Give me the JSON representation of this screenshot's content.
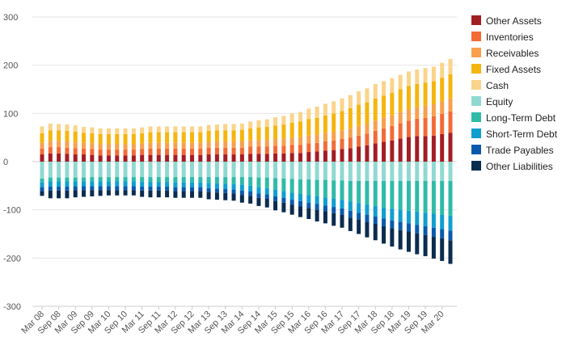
{
  "chart_data": {
    "type": "bar",
    "stacked": true,
    "ylim": [
      -300,
      300
    ],
    "yticks": [
      300,
      200,
      100,
      0,
      -100,
      -200,
      -300
    ],
    "grid": true,
    "legend_position": "right",
    "periods": [
      "Mar 08",
      "Jun 08",
      "Sep 08",
      "Dec 08",
      "Mar 09",
      "Jun 09",
      "Sep 09",
      "Dec 09",
      "Mar 10",
      "Jun 10",
      "Sep 10",
      "Dec 10",
      "Mar 11",
      "Jun 11",
      "Sep 11",
      "Dec 11",
      "Mar 12",
      "Jun 12",
      "Sep 12",
      "Dec 12",
      "Mar 13",
      "Jun 13",
      "Sep 13",
      "Dec 13",
      "Mar 14",
      "Jun 14",
      "Sep 14",
      "Dec 14",
      "Mar 15",
      "Jun 15",
      "Sep 15",
      "Dec 15",
      "Mar 16",
      "Jun 16",
      "Sep 16",
      "Dec 16",
      "Mar 17",
      "Jun 17",
      "Sep 17",
      "Dec 17",
      "Mar 18",
      "Jun 18",
      "Sep 18",
      "Dec 18",
      "Mar 19",
      "Jun 19",
      "Sep 19",
      "Dec 19",
      "Mar 20",
      "Jun 20"
    ],
    "x_tick_labels": [
      "Mar 08",
      "Sep 08",
      "Mar 09",
      "Sep 09",
      "Mar 10",
      "Sep 10",
      "Mar 11",
      "Sep 11",
      "Mar 12",
      "Sep 12",
      "Mar 13",
      "Sep 13",
      "Mar 14",
      "Sep 14",
      "Mar 15",
      "Sep 15",
      "Mar 16",
      "Sep 16",
      "Mar 17",
      "Sep 17",
      "Mar 18",
      "Sep 18",
      "Mar 19",
      "Sep 19",
      "Mar 20"
    ],
    "series": [
      {
        "name": "Other Assets",
        "color": "#a31d24",
        "values": [
          15,
          17,
          17,
          16,
          15,
          15,
          14,
          13,
          13,
          13,
          13,
          13,
          14,
          14,
          14,
          14,
          14,
          14,
          14,
          14,
          15,
          15,
          15,
          15,
          15,
          16,
          16,
          16,
          17,
          17,
          18,
          18,
          20,
          21,
          23,
          24,
          26,
          28,
          31,
          34,
          38,
          41,
          44,
          48,
          51,
          53,
          53,
          54,
          57,
          60
        ]
      },
      {
        "name": "Inventories",
        "color": "#f26b37",
        "values": [
          12,
          13,
          13,
          13,
          13,
          12,
          12,
          12,
          12,
          12,
          12,
          12,
          12,
          13,
          13,
          13,
          13,
          13,
          13,
          13,
          14,
          14,
          14,
          14,
          14,
          15,
          15,
          15,
          16,
          16,
          17,
          17,
          18,
          18,
          19,
          20,
          21,
          22,
          23,
          24,
          26,
          28,
          30,
          32,
          34,
          36,
          38,
          40,
          42,
          44
        ]
      },
      {
        "name": "Receivables",
        "color": "#f8a04e",
        "values": [
          12,
          13,
          13,
          13,
          12,
          12,
          12,
          11,
          11,
          11,
          11,
          11,
          12,
          12,
          12,
          12,
          12,
          12,
          12,
          12,
          12,
          13,
          13,
          13,
          13,
          13,
          14,
          14,
          14,
          15,
          15,
          16,
          16,
          17,
          17,
          18,
          18,
          19,
          20,
          20,
          21,
          22,
          22,
          23,
          24,
          24,
          25,
          25,
          26,
          27
        ]
      },
      {
        "name": "Fixed Assets",
        "color": "#f5b50f",
        "values": [
          20,
          22,
          22,
          22,
          22,
          21,
          21,
          21,
          21,
          21,
          21,
          21,
          21,
          22,
          22,
          22,
          22,
          22,
          22,
          22,
          23,
          23,
          23,
          23,
          24,
          25,
          26,
          27,
          28,
          29,
          31,
          32,
          34,
          35,
          37,
          38,
          40,
          42,
          44,
          45,
          46,
          46,
          47,
          47,
          48,
          48,
          48,
          48,
          49,
          50
        ]
      },
      {
        "name": "Cash",
        "color": "#fad48a",
        "values": [
          14,
          14,
          13,
          13,
          13,
          12,
          12,
          12,
          12,
          12,
          12,
          12,
          12,
          12,
          12,
          12,
          12,
          12,
          12,
          12,
          12,
          12,
          13,
          13,
          13,
          14,
          15,
          16,
          17,
          18,
          19,
          20,
          22,
          23,
          24,
          25,
          26,
          27,
          28,
          29,
          30,
          30,
          30,
          30,
          30,
          30,
          30,
          30,
          31,
          32
        ]
      },
      {
        "name": "Equity",
        "color": "#8fd9d2",
        "values": [
          -35,
          -33,
          -33,
          -33,
          -33,
          -33,
          -32,
          -32,
          -32,
          -32,
          -32,
          -32,
          -32,
          -32,
          -32,
          -32,
          -32,
          -32,
          -32,
          -32,
          -32,
          -32,
          -32,
          -32,
          -32,
          -32,
          -33,
          -33,
          -34,
          -35,
          -36,
          -37,
          -37,
          -38,
          -38,
          -39,
          -39,
          -40,
          -40,
          -40,
          -40,
          -40,
          -40,
          -40,
          -40,
          -40,
          -40,
          -40,
          -40,
          -40
        ]
      },
      {
        "name": "Long-Term Debt",
        "color": "#2fbba8",
        "values": [
          -8,
          -8,
          -8,
          -8,
          -8,
          -8,
          -9,
          -9,
          -9,
          -9,
          -9,
          -9,
          -10,
          -10,
          -10,
          -10,
          -11,
          -11,
          -11,
          -11,
          -12,
          -13,
          -14,
          -15,
          -16,
          -18,
          -20,
          -22,
          -24,
          -26,
          -28,
          -30,
          -32,
          -34,
          -36,
          -38,
          -40,
          -43,
          -46,
          -49,
          -52,
          -55,
          -58,
          -60,
          -62,
          -64,
          -66,
          -68,
          -70,
          -72
        ]
      },
      {
        "name": "Short-Term Debt",
        "color": "#0f9fcf",
        "values": [
          -10,
          -11,
          -11,
          -11,
          -10,
          -10,
          -10,
          -10,
          -10,
          -10,
          -10,
          -10,
          -10,
          -10,
          -10,
          -10,
          -10,
          -10,
          -10,
          -10,
          -11,
          -11,
          -11,
          -11,
          -12,
          -12,
          -13,
          -13,
          -14,
          -14,
          -15,
          -15,
          -16,
          -16,
          -17,
          -17,
          -18,
          -19,
          -20,
          -21,
          -22,
          -23,
          -24,
          -25,
          -26,
          -27,
          -28,
          -29,
          -30,
          -31
        ]
      },
      {
        "name": "Trade Payables",
        "color": "#0a5aac",
        "values": [
          -8,
          -8,
          -8,
          -8,
          -8,
          -8,
          -8,
          -8,
          -8,
          -8,
          -8,
          -8,
          -8,
          -8,
          -8,
          -8,
          -8,
          -8,
          -8,
          -8,
          -8,
          -8,
          -8,
          -8,
          -9,
          -9,
          -9,
          -9,
          -10,
          -10,
          -10,
          -11,
          -11,
          -12,
          -12,
          -13,
          -13,
          -14,
          -14,
          -15,
          -15,
          -16,
          -16,
          -17,
          -17,
          -18,
          -18,
          -19,
          -19,
          -20
        ]
      },
      {
        "name": "Other Liabilities",
        "color": "#0c2c4f",
        "values": [
          -10,
          -16,
          -16,
          -16,
          -15,
          -14,
          -13,
          -12,
          -11,
          -11,
          -11,
          -11,
          -13,
          -14,
          -14,
          -14,
          -14,
          -14,
          -14,
          -14,
          -15,
          -15,
          -15,
          -15,
          -16,
          -16,
          -17,
          -18,
          -19,
          -20,
          -21,
          -22,
          -23,
          -24,
          -25,
          -26,
          -27,
          -28,
          -30,
          -32,
          -34,
          -36,
          -38,
          -40,
          -42,
          -43,
          -44,
          -45,
          -47,
          -49
        ]
      }
    ]
  }
}
